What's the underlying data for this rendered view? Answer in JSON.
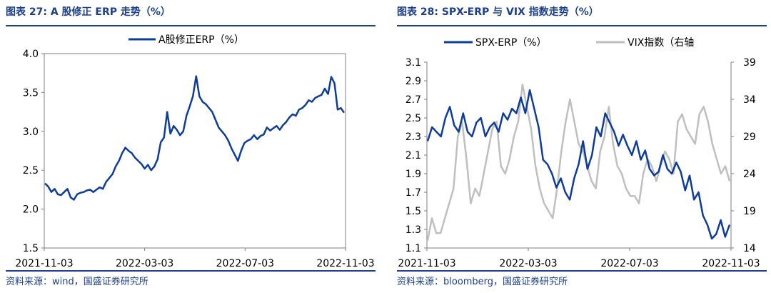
{
  "colors": {
    "navy": "#1c3f8c",
    "series_blue": "#0e3c99",
    "series_gray": "#bfbfbf",
    "axis": "#7f7f7f"
  },
  "left": {
    "title": "图表 27:  A 股修正 ERP 走势（%）",
    "source": "资料来源：wind，国盛证券研究所",
    "chart_data": {
      "type": "line",
      "legend": {
        "label": "A股修正ERP（%）",
        "position": "top-center"
      },
      "x_ticks": [
        "2021-11-03",
        "2022-03-03",
        "2022-07-03",
        "2022-11-03"
      ],
      "ylim": [
        1.5,
        4.0
      ],
      "y_ticks": [
        1.5,
        2.0,
        2.5,
        3.0,
        3.5,
        4.0
      ],
      "y_tick_labels": [
        "1.5",
        "2.0",
        "2.5",
        "3.0",
        "3.5",
        "4.0"
      ],
      "series": [
        {
          "name": "A股修正ERP（%）",
          "values": [
            2.33,
            2.29,
            2.22,
            2.26,
            2.19,
            2.18,
            2.22,
            2.26,
            2.15,
            2.12,
            2.19,
            2.21,
            2.22,
            2.24,
            2.25,
            2.22,
            2.25,
            2.28,
            2.26,
            2.35,
            2.4,
            2.45,
            2.55,
            2.62,
            2.72,
            2.79,
            2.75,
            2.72,
            2.66,
            2.62,
            2.58,
            2.52,
            2.57,
            2.5,
            2.55,
            2.64,
            2.86,
            2.92,
            3.25,
            2.97,
            3.07,
            3.02,
            2.95,
            3.0,
            3.2,
            3.32,
            3.45,
            3.71,
            3.45,
            3.38,
            3.35,
            3.3,
            3.25,
            3.15,
            3.05,
            3.0,
            2.95,
            2.88,
            2.78,
            2.7,
            2.62,
            2.75,
            2.85,
            2.88,
            2.9,
            2.95,
            2.9,
            2.94,
            2.96,
            3.05,
            3.01,
            3.04,
            3.07,
            3.02,
            3.08,
            3.12,
            3.18,
            3.22,
            3.2,
            3.28,
            3.3,
            3.34,
            3.4,
            3.38,
            3.43,
            3.45,
            3.47,
            3.55,
            3.48,
            3.7,
            3.62,
            3.28,
            3.3,
            3.24
          ]
        }
      ]
    }
  },
  "right": {
    "title": "图表 28:  SPX-ERP 与 VIX 指数走势（%）",
    "source": "资料来源：bloomberg，国盛证券研究所",
    "chart_data": {
      "type": "line",
      "legend": [
        {
          "label": "SPX-ERP（%）",
          "position": "top-left"
        },
        {
          "label": "VIX指数（右轴",
          "position": "top-right"
        }
      ],
      "x_ticks": [
        "2021-11-03",
        "2022-03-03",
        "2022-07-03",
        "2022-11-03"
      ],
      "y_left": {
        "lim": [
          1.1,
          3.1
        ],
        "ticks": [
          1.1,
          1.3,
          1.5,
          1.7,
          1.9,
          2.1,
          2.3,
          2.5,
          2.7,
          2.9,
          3.1
        ],
        "tick_labels": [
          "1.1",
          "1.3",
          "1.5",
          "1.7",
          "1.9",
          "2.1",
          "2.3",
          "2.5",
          "2.7",
          "2.9",
          "3.1"
        ]
      },
      "y_right": {
        "lim": [
          14,
          39
        ],
        "ticks": [
          14,
          19,
          24,
          29,
          34,
          39
        ],
        "tick_labels": [
          "14",
          "19",
          "24",
          "29",
          "34",
          "39"
        ]
      },
      "series": [
        {
          "name": "SPX-ERP（%）",
          "axis": "left",
          "values": [
            2.25,
            2.4,
            2.35,
            2.3,
            2.5,
            2.62,
            2.42,
            2.35,
            2.55,
            2.35,
            2.3,
            2.45,
            2.5,
            2.3,
            2.4,
            2.45,
            2.35,
            2.55,
            2.48,
            2.6,
            2.55,
            2.72,
            2.55,
            2.8,
            2.6,
            2.4,
            2.05,
            2.0,
            1.9,
            1.75,
            1.85,
            1.7,
            1.62,
            1.85,
            2.0,
            2.25,
            1.95,
            2.1,
            2.4,
            2.3,
            2.55,
            2.45,
            2.35,
            2.2,
            2.32,
            2.2,
            2.1,
            2.25,
            2.05,
            2.15,
            1.95,
            1.88,
            1.92,
            2.1,
            1.95,
            1.9,
            2.02,
            1.92,
            1.72,
            1.88,
            1.62,
            1.7,
            1.45,
            1.35,
            1.2,
            1.25,
            1.4,
            1.22,
            1.35
          ]
        },
        {
          "name": "VIX指数（右轴",
          "axis": "right",
          "values": [
            15,
            18,
            16,
            16,
            18,
            20,
            22,
            29,
            31,
            26,
            20,
            22,
            21,
            24,
            27,
            30,
            31,
            25,
            24,
            26,
            29,
            31,
            36,
            33,
            30,
            25,
            22,
            20,
            19,
            18,
            22,
            27,
            31,
            34,
            31,
            28,
            27,
            25,
            23,
            22,
            27,
            29,
            33,
            28,
            25,
            24,
            22,
            21,
            21,
            20,
            24,
            26,
            25,
            23,
            25,
            27,
            26,
            24,
            31,
            32,
            30,
            29,
            28,
            32,
            33,
            31,
            28,
            26,
            24,
            25,
            23
          ]
        }
      ]
    }
  }
}
